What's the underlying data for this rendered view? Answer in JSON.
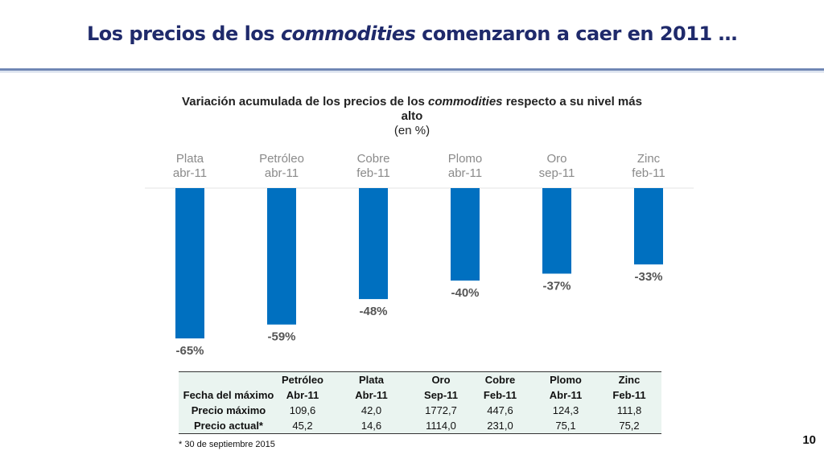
{
  "slide": {
    "title_pre": "Los precios de los ",
    "title_em": "commodities",
    "title_post": " comenzaron a caer en 2011 …",
    "page_number": "10",
    "footnote": "* 30 de septiembre 2015"
  },
  "chart_data": {
    "type": "bar",
    "title_pre": "Variación acumulada de los precios de los ",
    "title_em": "commodities",
    "title_post": " respecto a su nivel más alto",
    "subtitle": "(en %)",
    "categories": [
      "Plata",
      "Petróleo",
      "Cobre",
      "Plomo",
      "Oro",
      "Zinc"
    ],
    "category_dates": [
      "abr-11",
      "abr-11",
      "feb-11",
      "abr-11",
      "sep-11",
      "feb-11"
    ],
    "values": [
      -65,
      -59,
      -48,
      -40,
      -37,
      -33
    ],
    "value_labels": [
      "-65%",
      "-59%",
      "-48%",
      "-40%",
      "-37%",
      "-33%"
    ],
    "bar_color": "#0070c0",
    "ylim": [
      -70,
      0
    ],
    "grid": false
  },
  "table": {
    "columns": [
      "",
      "Petróleo",
      "Plata",
      "Oro",
      "Cobre",
      "Plomo",
      "Zinc"
    ],
    "rows": [
      {
        "label": "Fecha del máximo",
        "cells": [
          "Abr-11",
          "Abr-11",
          "Sep-11",
          "Feb-11",
          "Abr-11",
          "Feb-11"
        ]
      },
      {
        "label": "Precio máximo",
        "cells": [
          "109,6",
          "42,0",
          "1772,7",
          "447,6",
          "124,3",
          "111,8"
        ]
      },
      {
        "label": "Precio actual*",
        "cells": [
          "45,2",
          "14,6",
          "1114,0",
          "231,0",
          "75,1",
          "75,2"
        ]
      }
    ]
  }
}
